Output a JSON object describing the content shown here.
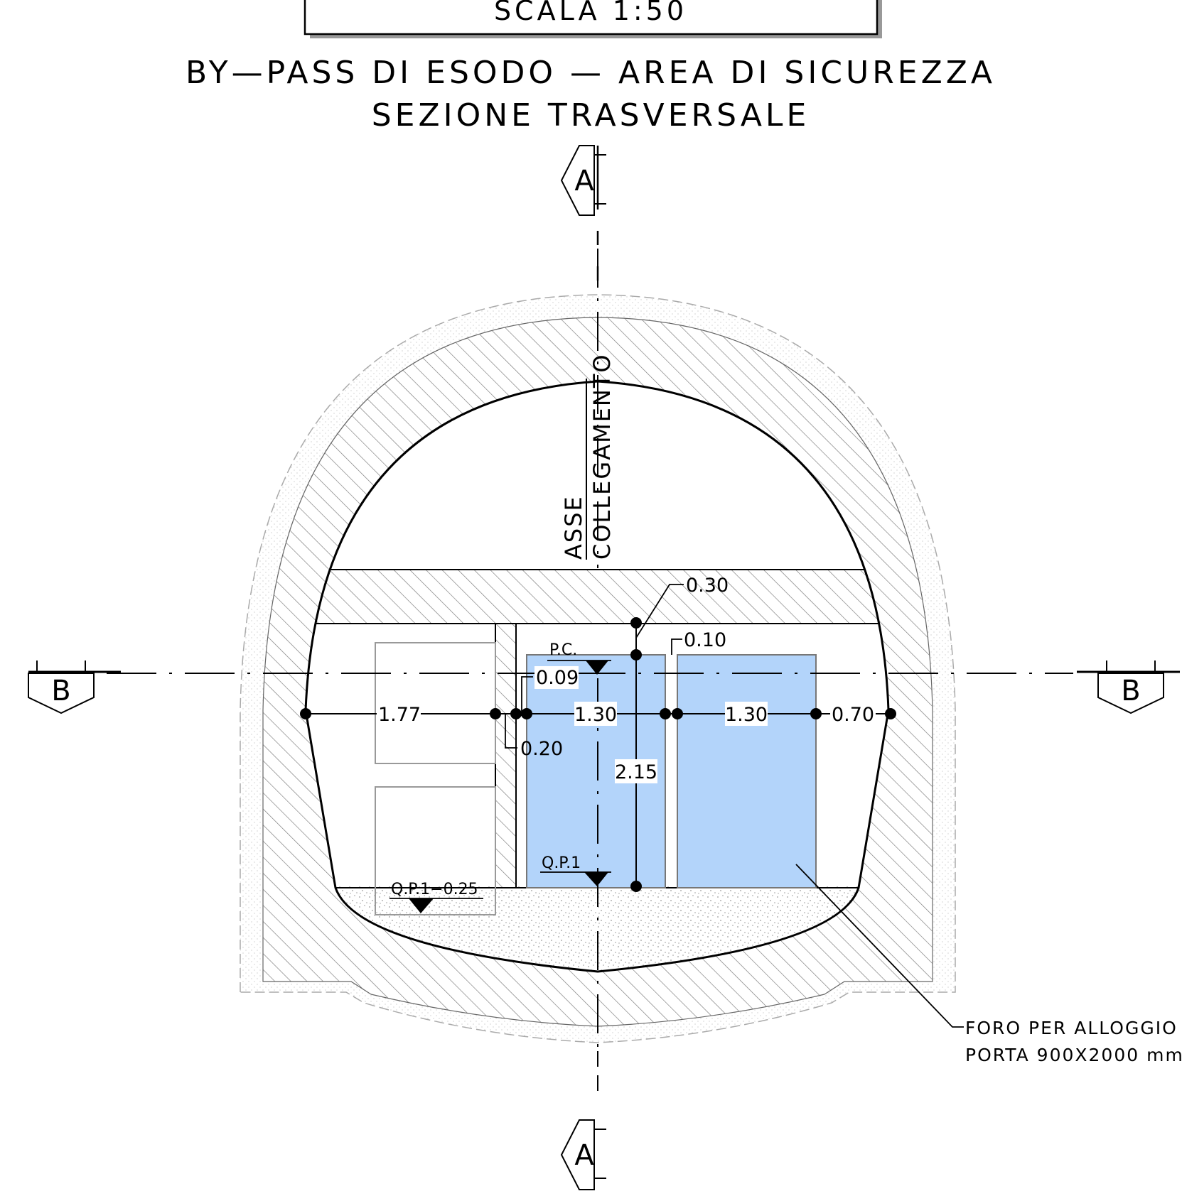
{
  "scale_label": "SCALA 1:50",
  "title_line1": "BY—PASS DI ESODO — AREA DI SICUREZZA",
  "title_line2": "SEZIONE TRASVERSALE",
  "section_markers": {
    "a_top": "A",
    "a_bottom": "A",
    "b_left": "B",
    "b_right": "B"
  },
  "axis_label": {
    "line1": "ASSE",
    "line2": "COLLEGAMENTO"
  },
  "levels": {
    "pc": "P.C.",
    "qp1": "Q.P.1",
    "qp1_minus": "Q.P.1−0.25"
  },
  "dimensions": {
    "d_030": "0.30",
    "d_010": "0.10",
    "d_009": "0.09",
    "d_177": "1.77",
    "d_130_a": "1.30",
    "d_130_b": "1.30",
    "d_070": "0.70",
    "d_020": "0.20",
    "d_215": "2.15"
  },
  "note": {
    "line1": "FORO PER ALLOGGIO",
    "line2": "PORTA 900X2000 mm"
  },
  "colors": {
    "door_fill": "#b3d4fa",
    "hatch": "#888888",
    "outer_ring": "#cccccc",
    "ink": "#000000"
  }
}
